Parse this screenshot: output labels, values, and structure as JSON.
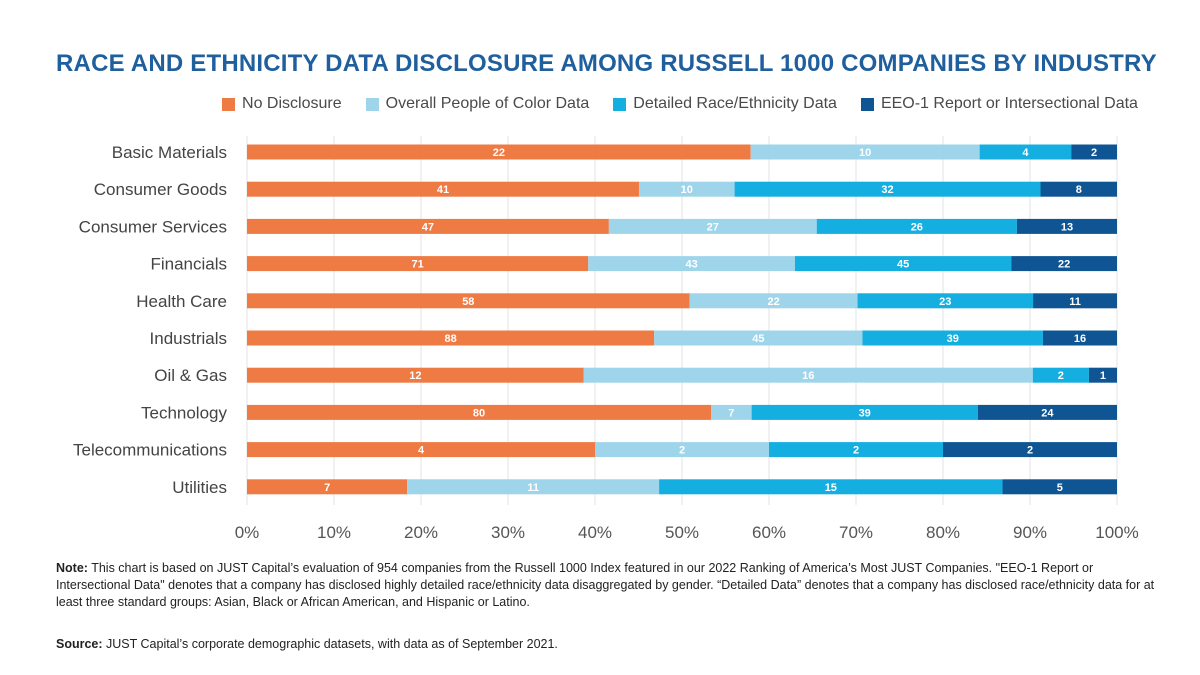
{
  "chart_data": {
    "type": "bar",
    "orientation": "horizontal",
    "stacked": "percent",
    "title": "RACE AND ETHNICITY DATA DISCLOSURE AMONG RUSSELL 1000 COMPANIES BY INDUSTRY",
    "legend_position": "top",
    "categories": [
      "Basic Materials",
      "Consumer Goods",
      "Consumer Services",
      "Financials",
      "Health Care",
      "Industrials",
      "Oil & Gas",
      "Technology",
      "Telecommunications",
      "Utilities"
    ],
    "series": [
      {
        "name": "No Disclosure",
        "color": "#ef7b44",
        "values": [
          22,
          41,
          47,
          71,
          58,
          88,
          12,
          80,
          4,
          7
        ]
      },
      {
        "name": "Overall People of Color Data",
        "color": "#9fd5ea",
        "values": [
          10,
          10,
          27,
          43,
          22,
          45,
          16,
          7,
          2,
          11
        ]
      },
      {
        "name": "Detailed Race/Ethnicity Data",
        "color": "#14afe0",
        "values": [
          4,
          32,
          26,
          45,
          23,
          39,
          2,
          39,
          2,
          15
        ]
      },
      {
        "name": "EEO-1 Report or Intersectional Data",
        "color": "#0f5593",
        "values": [
          2,
          8,
          13,
          22,
          11,
          16,
          1,
          24,
          2,
          5
        ]
      }
    ],
    "xlim": [
      0,
      100
    ],
    "x_ticks": [
      "0%",
      "10%",
      "20%",
      "30%",
      "40%",
      "50%",
      "60%",
      "70%",
      "80%",
      "90%",
      "100%"
    ],
    "grid": true
  },
  "footnote": {
    "note_label": "Note:",
    "note_text": " This chart is based on JUST Capital’s evaluation of 954 companies from the Russell 1000 Index featured in our 2022 Ranking of America’s Most JUST Companies. \"EEO-1 Report or Intersectional Data\" denotes that a company has disclosed highly detailed race/ethnicity data disaggregated by gender. “Detailed Data” denotes that a company has disclosed race/ethnicity data for at least three standard groups: Asian, Black or African American, and Hispanic or Latino.",
    "source_label": "Source:",
    "source_text": " JUST Capital’s corporate demographic datasets, with data as of September 2021."
  }
}
